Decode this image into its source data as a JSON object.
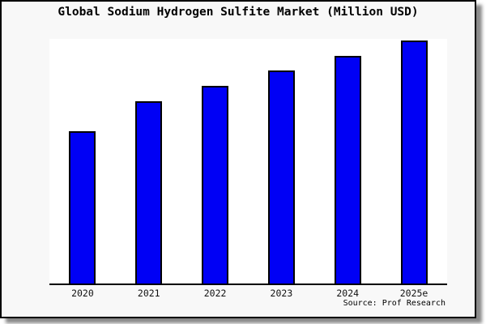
{
  "chart_data": {
    "type": "bar",
    "title": "Global Sodium Hydrogen Sulfite Market (Million USD)",
    "categories": [
      "2020",
      "2021",
      "2022",
      "2023",
      "2024",
      "2025e"
    ],
    "values": [
      62.3,
      74.5,
      80.8,
      87.1,
      93.0,
      99.3
    ],
    "xlabel": "",
    "ylabel": "",
    "ylim": [
      0,
      100
    ],
    "y_axis_visible": false,
    "grid": false,
    "legend": false,
    "bar_color": "#0000f5",
    "bar_border_color": "#000000",
    "plot_bg_color": "#ffffff",
    "figure_bg_color": "#f8f8f8",
    "axis_color": "#000000"
  },
  "source": {
    "text": "Source: Prof Research"
  }
}
